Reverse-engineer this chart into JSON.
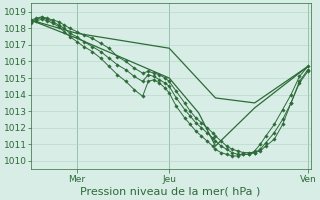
{
  "bg_color": "#d8ede6",
  "grid_color": "#b0d4c4",
  "line_color": "#2d6b38",
  "xlabel": "Pression niveau de la mer( hPa )",
  "xlabel_fontsize": 8,
  "tick_fontsize": 6.5,
  "ylim": [
    1009.5,
    1019.5
  ],
  "yticks": [
    1010,
    1011,
    1012,
    1013,
    1014,
    1015,
    1016,
    1017,
    1018,
    1019
  ],
  "xlim": [
    0,
    1.0
  ],
  "xtick_positions": [
    0.165,
    0.495,
    0.99
  ],
  "xtick_labels": [
    "Mer",
    "Jeu",
    "Ven"
  ],
  "day_vlines": [
    0.165,
    0.495,
    0.99
  ],
  "lines_dense": [
    {
      "x": [
        0.0,
        0.02,
        0.04,
        0.06,
        0.08,
        0.1,
        0.12,
        0.14,
        0.165,
        0.19,
        0.22,
        0.25,
        0.28,
        0.31,
        0.34,
        0.37,
        0.4,
        0.42,
        0.44,
        0.46,
        0.48,
        0.495,
        0.52,
        0.55,
        0.57,
        0.59,
        0.61,
        0.63,
        0.65,
        0.66,
        0.68,
        0.7,
        0.72,
        0.74,
        0.76,
        0.78,
        0.8,
        0.82,
        0.84,
        0.87,
        0.9,
        0.93,
        0.96,
        0.99
      ],
      "y": [
        1018.5,
        1018.6,
        1018.7,
        1018.6,
        1018.5,
        1018.4,
        1018.2,
        1018.0,
        1017.8,
        1017.6,
        1017.4,
        1017.1,
        1016.8,
        1016.3,
        1016.0,
        1015.6,
        1015.3,
        1015.4,
        1015.3,
        1015.2,
        1015.0,
        1014.8,
        1014.2,
        1013.5,
        1013.0,
        1012.6,
        1012.3,
        1012.0,
        1011.7,
        1011.5,
        1011.2,
        1010.9,
        1010.7,
        1010.6,
        1010.5,
        1010.5,
        1010.5,
        1010.6,
        1010.9,
        1011.3,
        1012.2,
        1013.5,
        1014.8,
        1015.5
      ]
    },
    {
      "x": [
        0.0,
        0.02,
        0.04,
        0.06,
        0.08,
        0.1,
        0.12,
        0.14,
        0.165,
        0.19,
        0.22,
        0.25,
        0.28,
        0.31,
        0.34,
        0.37,
        0.4,
        0.42,
        0.44,
        0.46,
        0.48,
        0.495,
        0.52,
        0.55,
        0.57,
        0.59,
        0.61,
        0.63,
        0.65,
        0.66,
        0.68,
        0.7,
        0.72,
        0.74,
        0.76,
        0.78,
        0.8,
        0.82,
        0.84,
        0.87,
        0.9,
        0.93,
        0.96,
        0.99
      ],
      "y": [
        1018.4,
        1018.55,
        1018.65,
        1018.55,
        1018.4,
        1018.2,
        1018.0,
        1017.7,
        1017.5,
        1017.2,
        1016.9,
        1016.6,
        1016.2,
        1015.8,
        1015.5,
        1015.1,
        1014.8,
        1015.2,
        1015.1,
        1014.9,
        1014.7,
        1014.5,
        1013.8,
        1013.1,
        1012.7,
        1012.3,
        1012.0,
        1011.7,
        1011.4,
        1011.2,
        1010.9,
        1010.7,
        1010.5,
        1010.4,
        1010.4,
        1010.4,
        1010.5,
        1010.7,
        1011.1,
        1011.7,
        1012.5,
        1013.5,
        1014.7,
        1015.4
      ]
    },
    {
      "x": [
        0.0,
        0.02,
        0.04,
        0.06,
        0.08,
        0.1,
        0.12,
        0.14,
        0.165,
        0.19,
        0.22,
        0.25,
        0.28,
        0.31,
        0.34,
        0.37,
        0.4,
        0.42,
        0.44,
        0.46,
        0.48,
        0.495,
        0.52,
        0.55,
        0.57,
        0.59,
        0.61,
        0.63,
        0.65,
        0.66,
        0.68,
        0.7,
        0.72,
        0.74,
        0.76,
        0.78,
        0.8,
        0.82,
        0.84,
        0.87,
        0.9,
        0.93,
        0.96,
        0.99
      ],
      "y": [
        1018.3,
        1018.45,
        1018.55,
        1018.45,
        1018.3,
        1018.1,
        1017.8,
        1017.5,
        1017.2,
        1016.9,
        1016.6,
        1016.2,
        1015.7,
        1015.2,
        1014.8,
        1014.3,
        1013.9,
        1014.8,
        1014.9,
        1014.7,
        1014.4,
        1014.1,
        1013.3,
        1012.6,
        1012.2,
        1011.8,
        1011.5,
        1011.2,
        1010.9,
        1010.7,
        1010.5,
        1010.4,
        1010.3,
        1010.3,
        1010.4,
        1010.4,
        1010.6,
        1011.0,
        1011.5,
        1012.2,
        1013.1,
        1014.0,
        1015.1,
        1015.7
      ]
    }
  ],
  "lines_sparse": [
    {
      "x": [
        0.0,
        0.165,
        0.495,
        0.66,
        0.8,
        0.99
      ],
      "y": [
        1018.5,
        1017.7,
        1016.8,
        1013.8,
        1013.5,
        1015.7
      ]
    },
    {
      "x": [
        0.0,
        0.165,
        0.495,
        0.6,
        0.66,
        0.8,
        0.99
      ],
      "y": [
        1018.5,
        1017.4,
        1015.0,
        1012.9,
        1010.9,
        1013.2,
        1015.7
      ]
    }
  ]
}
